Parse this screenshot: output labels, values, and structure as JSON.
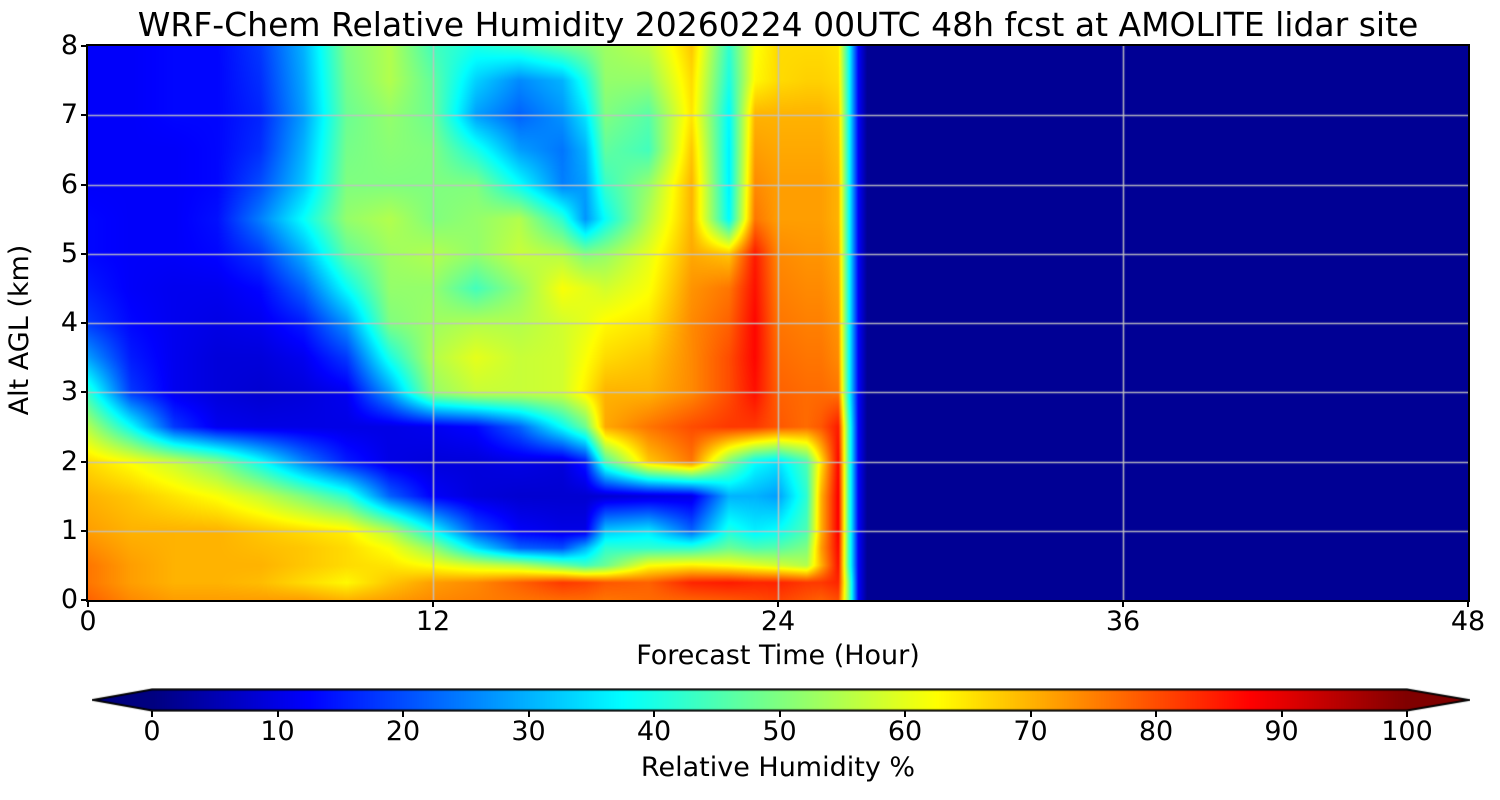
{
  "title": "WRF-Chem Relative Humidity 20260224 00UTC 48h fcst at AMOLITE lidar site",
  "axes": {
    "xlabel": "Forecast Time (Hour)",
    "ylabel": "Alt AGL (km)",
    "x_ticks": [
      0,
      12,
      24,
      36,
      48
    ],
    "y_ticks": [
      0,
      1,
      2,
      3,
      4,
      5,
      6,
      7,
      8
    ],
    "xlim": [
      0,
      48
    ],
    "ylim": [
      0,
      8
    ],
    "grid_x": [
      12,
      24,
      36
    ],
    "grid_y": [
      1,
      2,
      3,
      4,
      5,
      6,
      7
    ],
    "grid_on": true
  },
  "colorbar": {
    "label": "Relative Humidity %",
    "ticks": [
      0,
      10,
      20,
      30,
      40,
      50,
      60,
      70,
      80,
      90,
      100
    ],
    "vmin": 0,
    "vmax": 100,
    "colormap": "jet",
    "extend": "both"
  },
  "colors": {
    "background": "#ffffff",
    "spine": "#000000",
    "gridline": "#c2c2c2",
    "under_arrow": "#000080",
    "over_arrow": "#800000"
  },
  "chart_data": {
    "type": "heatmap",
    "title": "WRF-Chem Relative Humidity 20260224 00UTC 48h fcst at AMOLITE lidar site",
    "xlabel": "Forecast Time (Hour)",
    "ylabel": "Alt AGL (km)",
    "value_label": "Relative Humidity %",
    "x_units": "hours",
    "y_units": "km",
    "data_end_hour": 26.5,
    "note": "RH percent on (forecast-hour, altitude-km) grid; field is navy (RH ~0) beyond hour ~26.7",
    "x": [
      0,
      1.5,
      3,
      4.5,
      6,
      7.5,
      9,
      10.5,
      12,
      13.5,
      15,
      16.5,
      17.3,
      18,
      19.5,
      21,
      22.3,
      23.2,
      24,
      25,
      25.5,
      26.1,
      26.45,
      26.8,
      27.1,
      48
    ],
    "y": [
      0,
      0.25,
      0.5,
      0.75,
      1,
      1.5,
      2,
      2.5,
      3,
      3.5,
      4,
      4.5,
      5,
      5.5,
      6,
      6.5,
      7,
      7.5,
      8
    ],
    "grid": [
      [
        78,
        74,
        72,
        72,
        72,
        72,
        70,
        72,
        74,
        75,
        76,
        77,
        77,
        76,
        77,
        78,
        79,
        80,
        81,
        79,
        78,
        80,
        50,
        12,
        2,
        2
      ],
      [
        76,
        72,
        70,
        70,
        69,
        66,
        63,
        68,
        72,
        74,
        78,
        82,
        81,
        79,
        78,
        84,
        85,
        84,
        84,
        82,
        82,
        84,
        50,
        12,
        2,
        2
      ],
      [
        76,
        72,
        70,
        70,
        70,
        68,
        66,
        65,
        62,
        58,
        55,
        48,
        44,
        48,
        62,
        64,
        62,
        60,
        58,
        55,
        70,
        86,
        45,
        12,
        2,
        2
      ],
      [
        74,
        71,
        70,
        70,
        69,
        68,
        66,
        62,
        52,
        35,
        22,
        20,
        30,
        42,
        42,
        42,
        48,
        45,
        46,
        50,
        72,
        87,
        45,
        12,
        2,
        2
      ],
      [
        72,
        70,
        70,
        70,
        68,
        66,
        64,
        55,
        38,
        20,
        12,
        10,
        10,
        32,
        35,
        22,
        40,
        36,
        38,
        45,
        70,
        88,
        45,
        12,
        2,
        2
      ],
      [
        70,
        68,
        65,
        62,
        57,
        50,
        42,
        22,
        12,
        9,
        8,
        8,
        8,
        8,
        9,
        10,
        30,
        30,
        28,
        42,
        70,
        88,
        45,
        12,
        2,
        2
      ],
      [
        66,
        62,
        57,
        50,
        38,
        25,
        15,
        10,
        9,
        9,
        10,
        9,
        15,
        45,
        68,
        76,
        50,
        38,
        35,
        45,
        65,
        87,
        45,
        12,
        2,
        2
      ],
      [
        55,
        38,
        18,
        11,
        10,
        10,
        10,
        10,
        11,
        13,
        22,
        38,
        48,
        71,
        76,
        80,
        82,
        82,
        79,
        77,
        79,
        85,
        45,
        12,
        2,
        2
      ],
      [
        42,
        18,
        11,
        9,
        8,
        9,
        11,
        28,
        52,
        57,
        57,
        58,
        64,
        70,
        70,
        74,
        80,
        86,
        78,
        77,
        77,
        76,
        40,
        12,
        2,
        2
      ],
      [
        28,
        15,
        11,
        9,
        9,
        11,
        18,
        40,
        55,
        60,
        57,
        58,
        62,
        66,
        68,
        74,
        80,
        87,
        77,
        76,
        76,
        74,
        40,
        12,
        2,
        2
      ],
      [
        18,
        13,
        11,
        10,
        11,
        15,
        27,
        50,
        53,
        55,
        55,
        58,
        60,
        63,
        65,
        74,
        78,
        87,
        76,
        75,
        75,
        73,
        40,
        12,
        2,
        2
      ],
      [
        15,
        12,
        11,
        11,
        13,
        22,
        38,
        52,
        52,
        44,
        52,
        62,
        60,
        58,
        62,
        73,
        76,
        86,
        75,
        74,
        74,
        72,
        40,
        12,
        2,
        2
      ],
      [
        13,
        12,
        12,
        13,
        18,
        30,
        47,
        53,
        55,
        52,
        57,
        55,
        50,
        52,
        60,
        71,
        68,
        85,
        74,
        73,
        73,
        71,
        40,
        12,
        2,
        2
      ],
      [
        13,
        12,
        12,
        14,
        25,
        38,
        52,
        55,
        50,
        52,
        55,
        42,
        27,
        38,
        55,
        70,
        37,
        76,
        72,
        72,
        72,
        70,
        40,
        12,
        2,
        2
      ],
      [
        12,
        12,
        12,
        13,
        20,
        32,
        50,
        50,
        50,
        50,
        38,
        25,
        28,
        43,
        52,
        70,
        36,
        74,
        72,
        72,
        72,
        70,
        40,
        12,
        2,
        2
      ],
      [
        12,
        12,
        12,
        13,
        17,
        30,
        49,
        51,
        50,
        40,
        28,
        24,
        30,
        47,
        44,
        68,
        36,
        72,
        71,
        71,
        71,
        69,
        40,
        12,
        2,
        2
      ],
      [
        12,
        12,
        13,
        13,
        16,
        28,
        48,
        52,
        48,
        28,
        22,
        27,
        35,
        50,
        46,
        65,
        37,
        70,
        70,
        70,
        70,
        68,
        40,
        12,
        2,
        2
      ],
      [
        12,
        12,
        13,
        13,
        17,
        29,
        49,
        55,
        47,
        33,
        26,
        30,
        40,
        52,
        52,
        66,
        40,
        63,
        66,
        67,
        67,
        66,
        40,
        12,
        2,
        2
      ],
      [
        12,
        12,
        13,
        13,
        18,
        30,
        50,
        55,
        44,
        40,
        43,
        48,
        50,
        53,
        56,
        68,
        42,
        62,
        66,
        66,
        66,
        65,
        40,
        12,
        2,
        2
      ]
    ]
  }
}
